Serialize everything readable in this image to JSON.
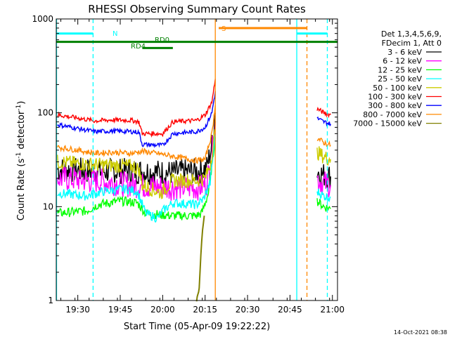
{
  "chart_data": {
    "type": "line",
    "title": "RHESSI Observing Summary Count Rates",
    "xlabel": "Start Time (05-Apr-09 19:22:22)",
    "ylabel_main": "Count Rate (s",
    "ylabel_sup1": "-1",
    "ylabel_mid": " detector",
    "ylabel_sup2": "-1",
    "ylabel_end": ")",
    "yscale": "log",
    "xlim": [
      19.373,
      21.03
    ],
    "ylim": [
      1,
      1000
    ],
    "x_ticks": [
      {
        "v": 19.5,
        "label": "19:30"
      },
      {
        "v": 19.75,
        "label": "19:45"
      },
      {
        "v": 20.0,
        "label": "20:00"
      },
      {
        "v": 20.25,
        "label": "20:15"
      },
      {
        "v": 20.5,
        "label": "20:30"
      },
      {
        "v": 20.75,
        "label": "20:45"
      },
      {
        "v": 21.0,
        "label": "21:00"
      }
    ],
    "y_ticks": [
      {
        "v": 1,
        "label": "1"
      },
      {
        "v": 10,
        "label": "10"
      },
      {
        "v": 100,
        "label": "100"
      },
      {
        "v": 1000,
        "label": "1000"
      }
    ],
    "legend_header": [
      "Det 1,3,4,5,6,9,",
      "FDecim 1, Att 0"
    ],
    "legend_position": "right",
    "timestamp": "14-Oct-2021 08:38",
    "series": [
      {
        "name": "3 - 6 keV",
        "color": "#000000",
        "segments": [
          [
            [
              19.38,
              25
            ],
            [
              19.6,
              24
            ],
            [
              19.82,
              24
            ],
            [
              20.05,
              23
            ],
            [
              20.22,
              24
            ],
            [
              20.26,
              26
            ],
            [
              20.29,
              45
            ],
            [
              20.31,
              100
            ]
          ],
          [
            [
              20.91,
              24
            ],
            [
              20.94,
              22
            ],
            [
              20.99,
              21
            ]
          ]
        ]
      },
      {
        "name": "6 - 12 keV",
        "color": "#ff00ff",
        "segments": [
          [
            [
              19.38,
              20
            ],
            [
              19.6,
              19
            ],
            [
              19.82,
              17
            ],
            [
              20.05,
              16
            ],
            [
              20.22,
              16
            ],
            [
              20.26,
              18
            ],
            [
              20.29,
              35
            ],
            [
              20.31,
              80
            ]
          ],
          [
            [
              20.91,
              20
            ],
            [
              20.94,
              18
            ],
            [
              20.99,
              17
            ]
          ]
        ]
      },
      {
        "name": "12 - 25 keV",
        "color": "#00ff00",
        "segments": [
          [
            [
              19.38,
              8.5
            ],
            [
              19.55,
              9
            ],
            [
              19.62,
              10.5
            ],
            [
              19.75,
              11.5
            ],
            [
              19.85,
              11
            ],
            [
              19.9,
              8.5
            ],
            [
              20.05,
              8
            ],
            [
              20.2,
              8
            ],
            [
              20.23,
              8.5
            ],
            [
              20.27,
              14
            ],
            [
              20.31,
              55
            ]
          ],
          [
            [
              20.91,
              11.5
            ],
            [
              20.95,
              10
            ],
            [
              20.99,
              9.5
            ]
          ]
        ]
      },
      {
        "name": "25 - 50 keV",
        "color": "#00ffff",
        "segments": [
          [
            [
              19.38,
              14
            ],
            [
              19.55,
              13
            ],
            [
              19.65,
              14.5
            ],
            [
              19.78,
              15.5
            ],
            [
              19.85,
              14.5
            ],
            [
              19.9,
              8.5
            ],
            [
              19.97,
              7.5
            ],
            [
              20.0,
              9
            ],
            [
              20.06,
              11
            ],
            [
              20.2,
              10.5
            ],
            [
              20.24,
              12
            ],
            [
              20.28,
              18
            ],
            [
              20.31,
              60
            ]
          ],
          [
            [
              20.91,
              14.5
            ],
            [
              20.95,
              13
            ],
            [
              20.99,
              12.5
            ]
          ]
        ]
      },
      {
        "name": "50 - 100 keV",
        "color": "#cccc00",
        "segments": [
          [
            [
              19.38,
              30
            ],
            [
              19.6,
              28
            ],
            [
              19.82,
              27
            ],
            [
              19.86,
              25
            ],
            [
              19.88,
              17
            ],
            [
              19.99,
              14
            ],
            [
              20.06,
              19
            ],
            [
              20.2,
              19
            ],
            [
              20.25,
              20
            ],
            [
              20.28,
              28
            ],
            [
              20.31,
              65
            ]
          ],
          [
            [
              20.91,
              38
            ],
            [
              20.95,
              34
            ],
            [
              20.99,
              32
            ]
          ]
        ]
      },
      {
        "name": "100 - 300 keV",
        "color": "#ff0000",
        "segments": [
          [
            [
              19.38,
              95
            ],
            [
              19.5,
              88
            ],
            [
              19.6,
              82
            ],
            [
              19.7,
              84
            ],
            [
              19.82,
              83
            ],
            [
              19.86,
              80
            ],
            [
              19.88,
              60
            ],
            [
              20.0,
              60
            ],
            [
              20.06,
              80
            ],
            [
              20.2,
              83
            ],
            [
              20.25,
              95
            ],
            [
              20.29,
              130
            ],
            [
              20.31,
              230
            ]
          ],
          [
            [
              20.91,
              110
            ],
            [
              20.95,
              100
            ],
            [
              20.99,
              95
            ]
          ]
        ]
      },
      {
        "name": "300 - 800 keV",
        "color": "#0000ff",
        "segments": [
          [
            [
              19.38,
              75
            ],
            [
              19.5,
              68
            ],
            [
              19.6,
              63
            ],
            [
              19.7,
              64
            ],
            [
              19.82,
              63
            ],
            [
              19.86,
              62
            ],
            [
              19.88,
              46
            ],
            [
              20.0,
              45
            ],
            [
              20.06,
              60
            ],
            [
              20.2,
              63
            ],
            [
              20.25,
              70
            ],
            [
              20.29,
              100
            ],
            [
              20.31,
              170
            ]
          ],
          [
            [
              20.91,
              87
            ],
            [
              20.95,
              80
            ],
            [
              20.99,
              76
            ]
          ]
        ]
      },
      {
        "name": "800 - 7000 keV",
        "color": "#ff8800",
        "segments": [
          [
            [
              19.38,
              43
            ],
            [
              19.5,
              40
            ],
            [
              19.6,
              37
            ],
            [
              19.7,
              38
            ],
            [
              19.82,
              37
            ],
            [
              19.88,
              39
            ],
            [
              20.0,
              36
            ],
            [
              20.2,
              31
            ],
            [
              20.25,
              32
            ],
            [
              20.29,
              60
            ],
            [
              20.31,
              120
            ]
          ],
          [
            [
              20.91,
              54
            ],
            [
              20.95,
              48
            ],
            [
              20.99,
              45
            ]
          ]
        ]
      },
      {
        "name": "7000 - 15000 keV",
        "color": "#808000",
        "segments": [
          [
            [
              20.2,
              1
            ],
            [
              20.215,
              1.3
            ],
            [
              20.225,
              3
            ],
            [
              20.235,
              6
            ],
            [
              20.245,
              8
            ]
          ]
        ]
      }
    ],
    "annotations": {
      "flag_N": {
        "label": "N",
        "color": "#00ffff",
        "x_ranges": [
          [
            19.373,
            19.59
          ],
          [
            20.79,
            20.97
          ]
        ],
        "y": 700
      },
      "flag_S": {
        "label": "S",
        "color": "#ff8800",
        "x_ranges": [
          [
            20.33,
            20.85
          ]
        ],
        "y": 800
      },
      "flag_RD0": {
        "label": "RD0",
        "color": "#008000",
        "x_ranges": [
          [
            19.373,
            21.03
          ]
        ],
        "y": 570
      },
      "flag_RD4": {
        "label": "RD4",
        "color": "#008000",
        "x_ranges": [
          [
            19.88,
            20.06
          ]
        ],
        "y": 490
      },
      "vlines": [
        {
          "x": 19.59,
          "color": "#00ffff",
          "dashed": true
        },
        {
          "x": 20.31,
          "color": "#ff8800",
          "dashed": false
        },
        {
          "x": 20.79,
          "color": "#00ffff",
          "dashed": false
        },
        {
          "x": 20.85,
          "color": "#ff8800",
          "dashed": true
        },
        {
          "x": 20.97,
          "color": "#00ffff",
          "dashed": true
        },
        {
          "x": 19.375,
          "color": "#00ffff",
          "dashed": false
        }
      ]
    }
  }
}
